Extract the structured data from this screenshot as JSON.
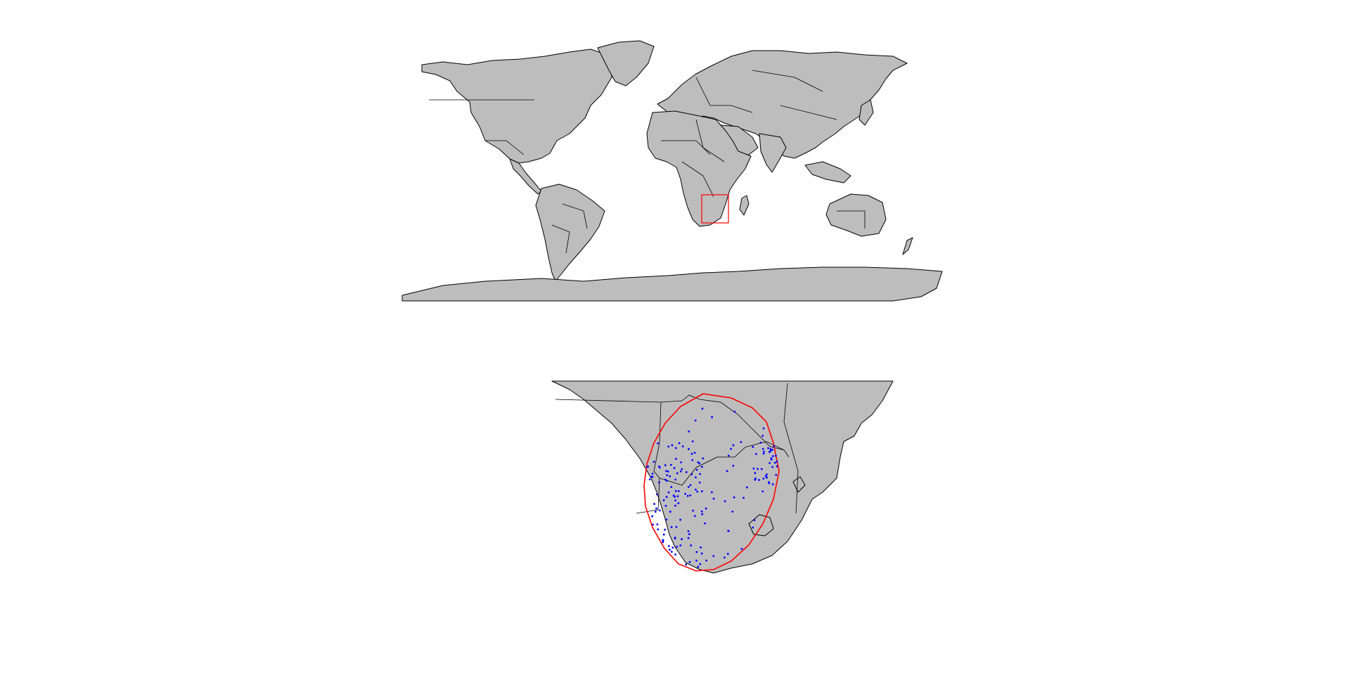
{
  "world_map": {
    "land_color": "#bdbdbd",
    "border_color": "#000000",
    "highlight_box_color": "#ff0000"
  },
  "inset_map": {
    "land_color": "#bdbdbd",
    "border_color": "#000000",
    "range_outline_color": "#ff0000",
    "occurrence_point_color": "#0000ff",
    "occurrence_point_count": 180
  }
}
